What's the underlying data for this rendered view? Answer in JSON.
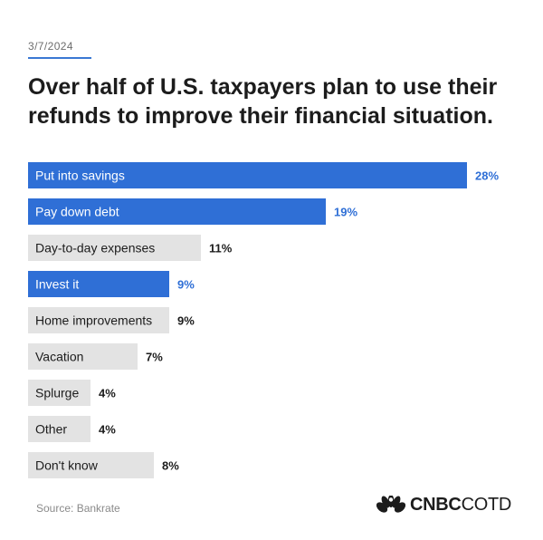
{
  "header": {
    "date": "3/7/2024",
    "title": "Over half of U.S. taxpayers plan to use their refunds to improve their financial situation."
  },
  "chart_data": {
    "type": "bar",
    "orientation": "horizontal",
    "title": "Over half of U.S. taxpayers plan to use their refunds to improve their financial situation.",
    "categories": [
      "Put into savings",
      "Pay down debt",
      "Day-to-day expenses",
      "Invest it",
      "Home improvements",
      "Vacation",
      "Splurge",
      "Other",
      "Don't know"
    ],
    "values": [
      28,
      19,
      11,
      9,
      9,
      7,
      4,
      4,
      8
    ],
    "value_labels": [
      "28%",
      "19%",
      "11%",
      "9%",
      "9%",
      "7%",
      "4%",
      "4%",
      "8%"
    ],
    "highlighted": [
      true,
      true,
      false,
      true,
      false,
      false,
      false,
      false,
      false
    ],
    "xlabel": "",
    "ylabel": "",
    "unit": "%",
    "xlim": [
      0,
      28
    ],
    "colors": {
      "highlight": "#2f6fd6",
      "default": "#e3e3e3",
      "highlight_text": "#ffffff",
      "default_text": "#1c1c1c",
      "highlight_value": "#2f6fd6",
      "default_value": "#1c1c1c"
    }
  },
  "footer": {
    "source": "Source: Bankrate",
    "logo_bold": "CNBC",
    "logo_light": "COTD",
    "logo_icon": "peacock-icon"
  }
}
